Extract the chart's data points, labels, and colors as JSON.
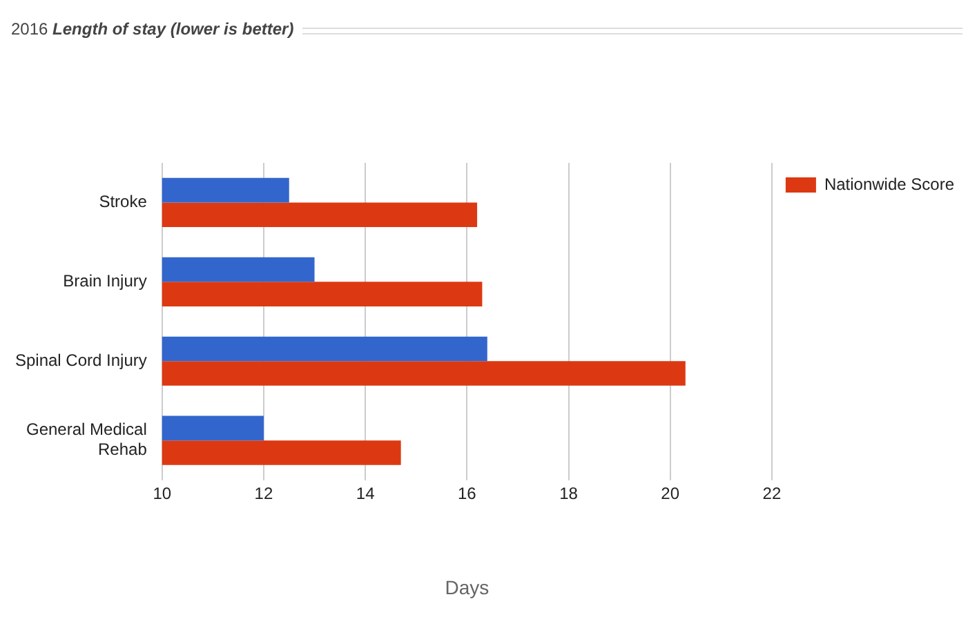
{
  "chart_data": {
    "type": "bar",
    "orientation": "horizontal",
    "title": "2016 Length of stay (lower is better)",
    "xlabel": "Days",
    "categories": [
      "Stroke",
      "Brain Injury",
      "Spinal Cord Injury",
      "General Medical Rehab"
    ],
    "series": [
      {
        "color": "#3366cc",
        "values": [
          12.5,
          13,
          16.4,
          12
        ]
      },
      {
        "name": "Nationwide Score",
        "color": "#dc3912",
        "values": [
          16.2,
          16.3,
          20.3,
          14.7
        ]
      }
    ],
    "xlim": [
      10,
      22
    ],
    "xticks": [
      10,
      12,
      14,
      16,
      18,
      20,
      22
    ],
    "grid": "x",
    "legend": "top right"
  }
}
